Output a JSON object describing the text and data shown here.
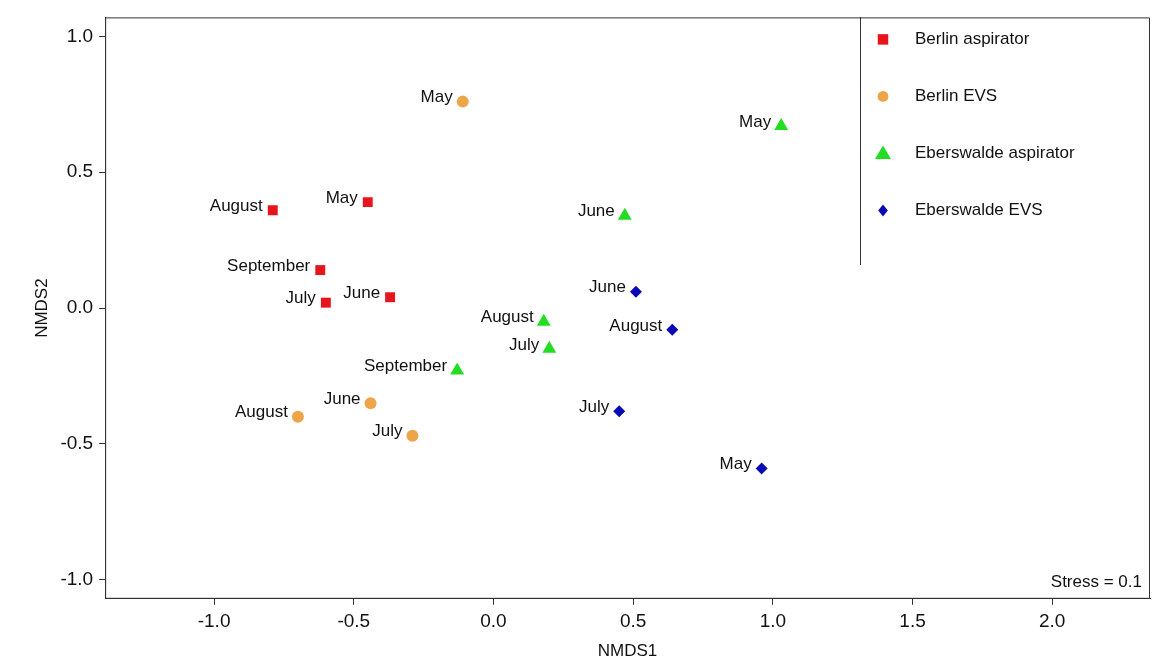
{
  "chart_data": {
    "type": "scatter",
    "xlabel": "NMDS1",
    "ylabel": "NMDS2",
    "xlim": [
      -1.39,
      2.35
    ],
    "ylim": [
      -1.07,
      1.07
    ],
    "xticks": [
      {
        "value": -1,
        "label": "-1.0"
      },
      {
        "value": -0.5,
        "label": "-0.5"
      },
      {
        "value": 0,
        "label": "0.0"
      },
      {
        "value": 0.5,
        "label": "0.5"
      },
      {
        "value": 1,
        "label": "1.0"
      },
      {
        "value": 1.5,
        "label": "1.5"
      },
      {
        "value": 2,
        "label": "2.0"
      }
    ],
    "yticks": [
      {
        "value": -1,
        "label": "-1.0"
      },
      {
        "value": -0.5,
        "label": "-0.5"
      },
      {
        "value": 0,
        "label": "0.0"
      },
      {
        "value": 0.5,
        "label": "0.5"
      },
      {
        "value": 1,
        "label": "1.0"
      }
    ],
    "grid": false,
    "legend": "top right",
    "series": [
      {
        "name": "Berlin aspirator",
        "color": "#e8141c",
        "marker": "square",
        "x": [
          -0.79,
          -0.45,
          -0.62,
          -0.6,
          -0.37
        ],
        "values": [
          0.36,
          0.39,
          0.14,
          0.02,
          0.04
        ]
      },
      {
        "name": "Berlin EVS",
        "color": "#eea54a",
        "marker": "circle",
        "x": [
          -0.11,
          -0.44,
          -0.7,
          -0.29
        ],
        "values": [
          0.76,
          -0.35,
          -0.4,
          -0.47
        ]
      },
      {
        "name": "Eberswalde aspirator",
        "color": "#22dd22",
        "marker": "triangle",
        "x": [
          1.03,
          0.47,
          0.18,
          0.2,
          -0.13
        ],
        "values": [
          0.67,
          0.34,
          -0.05,
          -0.15,
          -0.23
        ]
      },
      {
        "name": "Eberswalde EVS",
        "color": "#0a0ab4",
        "marker": "diamond",
        "x": [
          0.51,
          0.64,
          0.45,
          0.96
        ],
        "values": [
          0.06,
          -0.08,
          -0.38,
          -0.59
        ]
      }
    ],
    "annotations": [
      {
        "text": "August",
        "x": -0.79,
        "y": 0.36
      },
      {
        "text": "May",
        "x": -0.45,
        "y": 0.39
      },
      {
        "text": "September",
        "x": -0.62,
        "y": 0.14
      },
      {
        "text": "July",
        "x": -0.6,
        "y": 0.02
      },
      {
        "text": "June",
        "x": -0.37,
        "y": 0.04
      },
      {
        "text": "May",
        "x": -0.11,
        "y": 0.76
      },
      {
        "text": "June",
        "x": -0.44,
        "y": -0.35
      },
      {
        "text": "August",
        "x": -0.7,
        "y": -0.4
      },
      {
        "text": "July",
        "x": -0.29,
        "y": -0.47
      },
      {
        "text": "May",
        "x": 1.03,
        "y": 0.67
      },
      {
        "text": "June",
        "x": 0.47,
        "y": 0.34
      },
      {
        "text": "August",
        "x": 0.18,
        "y": -0.05
      },
      {
        "text": "July",
        "x": 0.2,
        "y": -0.15
      },
      {
        "text": "September",
        "x": -0.13,
        "y": -0.23
      },
      {
        "text": "June",
        "x": 0.51,
        "y": 0.06
      },
      {
        "text": "August",
        "x": 0.64,
        "y": -0.08
      },
      {
        "text": "July",
        "x": 0.45,
        "y": -0.38
      },
      {
        "text": "May",
        "x": 0.96,
        "y": -0.59
      },
      "Stress = 0.1"
    ]
  }
}
